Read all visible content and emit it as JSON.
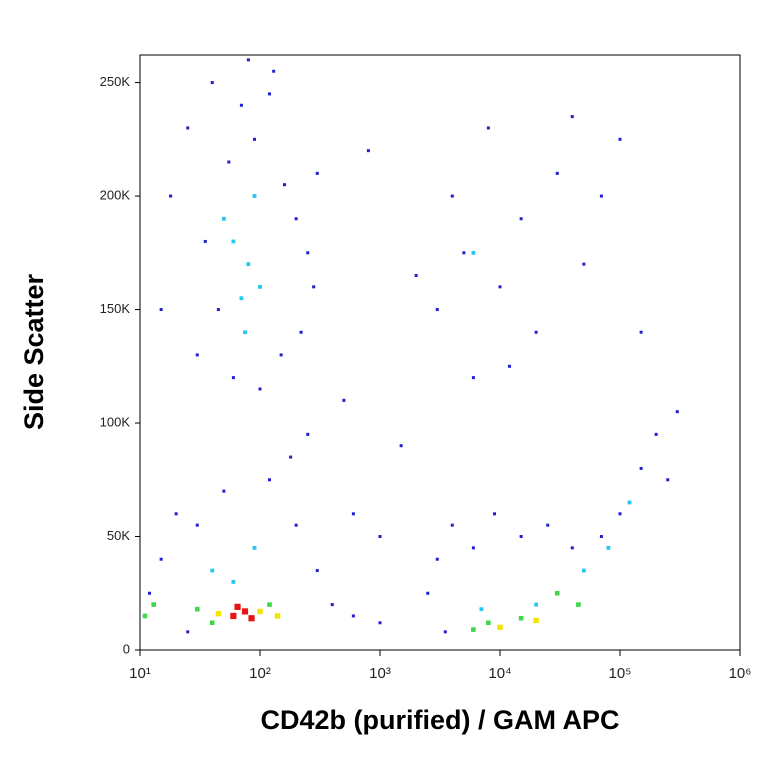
{
  "chart_data": {
    "type": "scatter",
    "x_label": "CD42b (purified) / GAM APC",
    "y_label": "Side Scatter",
    "xscale": "log",
    "xlim": [
      10,
      1000000
    ],
    "xticks": [
      {
        "value": 10,
        "label": "10¹"
      },
      {
        "value": 100,
        "label": "10²"
      },
      {
        "value": 1000,
        "label": "10³"
      },
      {
        "value": 10000,
        "label": "10⁴"
      },
      {
        "value": 100000,
        "label": "10⁵"
      },
      {
        "value": 1000000,
        "label": "10⁶"
      }
    ],
    "ylim": [
      0,
      262144
    ],
    "yticks": [
      0,
      {
        "value": 50000,
        "label": "50K"
      },
      {
        "value": 100000,
        "label": "100K"
      },
      {
        "value": 150000,
        "label": "150K"
      },
      {
        "value": 200000,
        "label": "200K"
      },
      {
        "value": 250000,
        "label": "250K"
      }
    ],
    "series": [
      {
        "color": "#1f1fd0",
        "x": [
          25,
          40,
          55,
          70,
          90,
          120,
          160,
          200,
          250,
          35,
          45,
          30,
          60,
          100,
          150,
          220,
          280,
          300,
          18,
          15,
          80,
          130,
          15,
          20,
          30,
          50,
          120,
          200,
          300,
          400,
          600,
          1000,
          12,
          25,
          180,
          250,
          3000,
          4000,
          6000,
          9000,
          15000,
          25000,
          40000,
          70000,
          100000,
          150000,
          200000,
          250000,
          300000,
          3500,
          2500,
          3000,
          4000,
          5000,
          8000,
          10000,
          15000,
          20000,
          30000,
          50000,
          70000,
          6000,
          12000,
          40000,
          100000,
          150000,
          2000,
          500,
          800,
          1500,
          600,
          1000
        ],
        "values": [
          230000,
          250000,
          215000,
          240000,
          225000,
          245000,
          205000,
          190000,
          175000,
          180000,
          150000,
          130000,
          120000,
          115000,
          130000,
          140000,
          160000,
          210000,
          200000,
          150000,
          260000,
          255000,
          40000,
          60000,
          55000,
          70000,
          75000,
          55000,
          35000,
          20000,
          15000,
          12000,
          25000,
          8000,
          85000,
          95000,
          40000,
          55000,
          45000,
          60000,
          50000,
          55000,
          45000,
          50000,
          60000,
          80000,
          95000,
          75000,
          105000,
          8000,
          25000,
          150000,
          200000,
          175000,
          230000,
          160000,
          190000,
          140000,
          210000,
          170000,
          200000,
          120000,
          125000,
          235000,
          225000,
          140000,
          165000,
          110000,
          220000,
          90000,
          60000,
          50000
        ]
      },
      {
        "color": "#22c8ee",
        "x": [
          60,
          80,
          70,
          90,
          50,
          100,
          75,
          40,
          90,
          60,
          7000,
          20000,
          50000,
          80000,
          120000,
          6000
        ],
        "values": [
          180000,
          170000,
          155000,
          200000,
          190000,
          160000,
          140000,
          35000,
          45000,
          30000,
          18000,
          20000,
          35000,
          45000,
          65000,
          175000
        ]
      },
      {
        "color": "#3ed84a",
        "x": [
          30,
          120,
          40,
          8000,
          15000,
          30000,
          6000,
          45000,
          11,
          13
        ],
        "values": [
          18000,
          20000,
          12000,
          12000,
          14000,
          25000,
          9000,
          20000,
          15000,
          20000
        ]
      },
      {
        "color": "#f2e600",
        "x": [
          45,
          100,
          10000,
          20000,
          140
        ],
        "values": [
          16000,
          17000,
          10000,
          13000,
          15000
        ]
      },
      {
        "color": "#e81414",
        "x": [
          60,
          75,
          85,
          65
        ],
        "values": [
          15000,
          17000,
          14000,
          19000
        ]
      }
    ]
  }
}
